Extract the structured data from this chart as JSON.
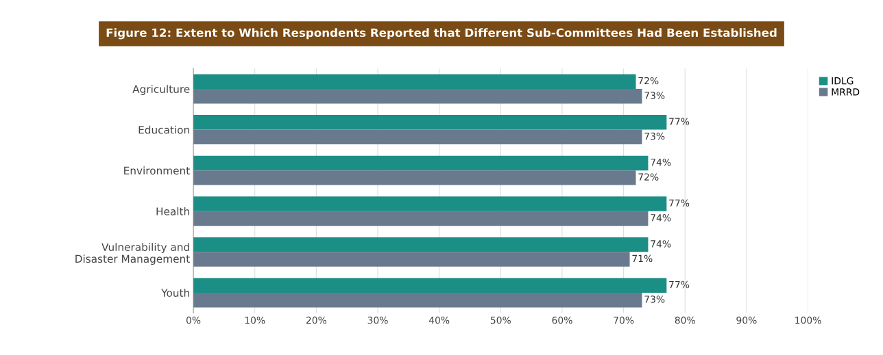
{
  "chart_data": {
    "type": "bar",
    "orientation": "horizontal",
    "title": "Figure 12: Extent to Which Respondents Reported that Different Sub-Committees Had Been Established",
    "categories": [
      "Agriculture",
      "Education",
      "Environment",
      "Health",
      "Vulnerability and\nDisaster Management",
      "Youth"
    ],
    "series": [
      {
        "name": "IDLG",
        "color": "#1b8e86",
        "values": [
          72,
          77,
          74,
          77,
          74,
          77
        ],
        "value_labels": [
          "72%",
          "77%",
          "74%",
          "77%",
          "74%",
          "77%"
        ]
      },
      {
        "name": "MRRD",
        "color": "#6a7a8e",
        "values": [
          73,
          73,
          72,
          74,
          71,
          73
        ],
        "value_labels": [
          "73%",
          "73%",
          "72%",
          "74%",
          "71%",
          "73%"
        ]
      }
    ],
    "xlim": [
      0,
      100
    ],
    "xticks": [
      {
        "value": 0,
        "label": "0%"
      },
      {
        "value": 10,
        "label": "10%"
      },
      {
        "value": 20,
        "label": "20%"
      },
      {
        "value": 30,
        "label": "30%"
      },
      {
        "value": 40,
        "label": "40%"
      },
      {
        "value": 50,
        "label": "50%"
      },
      {
        "value": 60,
        "label": "60%"
      },
      {
        "value": 70,
        "label": "70%"
      },
      {
        "value": 80,
        "label": "80%"
      },
      {
        "value": 90,
        "label": "90%"
      },
      {
        "value": 100,
        "label": "100%"
      }
    ],
    "grid": "x",
    "legend": "top right"
  }
}
